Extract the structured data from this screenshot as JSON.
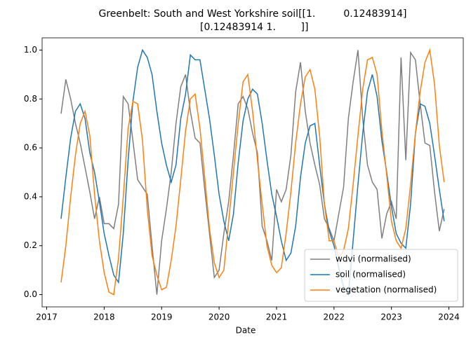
{
  "chart_data": {
    "type": "line",
    "title": [
      "Greenbelt: South and West Yorkshire soil[[1.         0.12483914]",
      " [0.12483914 1.        ]]"
    ],
    "xlabel": "Date",
    "x": [
      2017.25,
      2017.333,
      2017.417,
      2017.5,
      2017.583,
      2017.667,
      2017.75,
      2017.833,
      2017.917,
      2018.0,
      2018.083,
      2018.167,
      2018.25,
      2018.333,
      2018.417,
      2018.5,
      2018.583,
      2018.667,
      2018.75,
      2018.833,
      2018.917,
      2019.0,
      2019.083,
      2019.167,
      2019.25,
      2019.333,
      2019.417,
      2019.5,
      2019.583,
      2019.667,
      2019.75,
      2019.833,
      2019.917,
      2020.0,
      2020.083,
      2020.167,
      2020.25,
      2020.333,
      2020.417,
      2020.5,
      2020.583,
      2020.667,
      2020.75,
      2020.833,
      2020.917,
      2021.0,
      2021.083,
      2021.167,
      2021.25,
      2021.333,
      2021.417,
      2021.5,
      2021.583,
      2021.667,
      2021.75,
      2021.833,
      2021.917,
      2022.0,
      2022.083,
      2022.167,
      2022.25,
      2022.333,
      2022.417,
      2022.5,
      2022.583,
      2022.667,
      2022.75,
      2022.833,
      2022.917,
      2023.0,
      2023.083,
      2023.167,
      2023.25,
      2023.333,
      2023.417,
      2023.5,
      2023.583,
      2023.667,
      2023.75,
      2023.833,
      2023.917
    ],
    "series": [
      {
        "name": "wdvi (normalised)",
        "color": "#7f7f7f",
        "values": [
          0.74,
          0.88,
          0.8,
          0.7,
          0.62,
          0.52,
          0.42,
          0.31,
          0.4,
          0.29,
          0.29,
          0.27,
          0.37,
          0.81,
          0.78,
          0.63,
          0.47,
          0.44,
          0.41,
          0.2,
          0.0,
          0.22,
          0.35,
          0.5,
          0.7,
          0.85,
          0.9,
          0.75,
          0.64,
          0.62,
          0.43,
          0.25,
          0.07,
          0.1,
          0.25,
          0.38,
          0.57,
          0.78,
          0.81,
          0.76,
          0.66,
          0.58,
          0.28,
          0.22,
          0.14,
          0.43,
          0.38,
          0.43,
          0.57,
          0.83,
          0.95,
          0.75,
          0.62,
          0.53,
          0.45,
          0.31,
          0.27,
          0.22,
          0.33,
          0.44,
          0.72,
          0.87,
          1.0,
          0.72,
          0.53,
          0.46,
          0.43,
          0.23,
          0.33,
          0.38,
          0.31,
          0.97,
          0.55,
          0.99,
          0.96,
          0.78,
          0.62,
          0.61,
          0.42,
          0.26,
          0.35
        ]
      },
      {
        "name": "soil (normalised)",
        "color": "#1f77b4",
        "values": [
          0.31,
          0.48,
          0.64,
          0.75,
          0.78,
          0.72,
          0.58,
          0.5,
          0.38,
          0.25,
          0.16,
          0.08,
          0.05,
          0.25,
          0.55,
          0.79,
          0.93,
          1.0,
          0.97,
          0.9,
          0.75,
          0.62,
          0.53,
          0.46,
          0.53,
          0.72,
          0.82,
          0.98,
          0.96,
          0.96,
          0.84,
          0.72,
          0.57,
          0.41,
          0.3,
          0.22,
          0.33,
          0.54,
          0.71,
          0.8,
          0.84,
          0.82,
          0.7,
          0.55,
          0.41,
          0.32,
          0.22,
          0.14,
          0.17,
          0.28,
          0.48,
          0.62,
          0.69,
          0.7,
          0.53,
          0.37,
          0.26,
          0.2,
          0.11,
          0.03,
          0.0,
          0.22,
          0.45,
          0.66,
          0.83,
          0.9,
          0.81,
          0.63,
          0.5,
          0.36,
          0.25,
          0.21,
          0.19,
          0.37,
          0.66,
          0.78,
          0.77,
          0.7,
          0.57,
          0.43,
          0.3
        ]
      },
      {
        "name": "vegetation (normalised)",
        "color": "#ff7f0e",
        "values": [
          0.05,
          0.2,
          0.4,
          0.57,
          0.7,
          0.75,
          0.65,
          0.41,
          0.22,
          0.09,
          0.01,
          0.0,
          0.15,
          0.4,
          0.68,
          0.79,
          0.78,
          0.63,
          0.35,
          0.16,
          0.08,
          0.02,
          0.03,
          0.14,
          0.28,
          0.47,
          0.67,
          0.8,
          0.82,
          0.68,
          0.48,
          0.27,
          0.13,
          0.07,
          0.1,
          0.3,
          0.5,
          0.7,
          0.87,
          0.9,
          0.75,
          0.55,
          0.37,
          0.2,
          0.12,
          0.09,
          0.11,
          0.25,
          0.42,
          0.62,
          0.78,
          0.89,
          0.92,
          0.84,
          0.65,
          0.37,
          0.22,
          0.22,
          0.15,
          0.18,
          0.27,
          0.45,
          0.65,
          0.84,
          0.96,
          0.97,
          0.9,
          0.67,
          0.49,
          0.3,
          0.22,
          0.19,
          0.27,
          0.45,
          0.66,
          0.83,
          0.95,
          1.0,
          0.86,
          0.61,
          0.46
        ]
      }
    ],
    "xlim": [
      2016.92,
      2024.25
    ],
    "xticks": [
      2017,
      2018,
      2019,
      2020,
      2021,
      2022,
      2023,
      2024
    ],
    "ylim": [
      -0.05,
      1.05
    ],
    "yticks": [
      {
        "value": 0,
        "label": "0.0"
      },
      {
        "value": 0.2,
        "label": "0.2"
      },
      {
        "value": 0.4,
        "label": "0.4"
      },
      {
        "value": 0.6,
        "label": "0.6"
      },
      {
        "value": 0.8,
        "label": "0.8"
      },
      {
        "value": 1,
        "label": "1.0"
      }
    ],
    "legend": "lower right",
    "grid": false
  }
}
